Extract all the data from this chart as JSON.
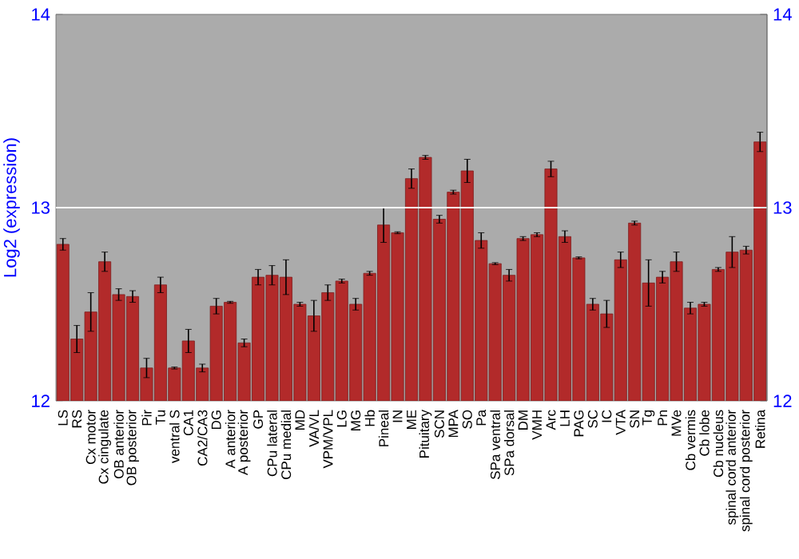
{
  "chart_data": {
    "type": "bar",
    "ylabel": "Log2 (expression)",
    "categories": [
      "LS",
      "RS",
      "Cx motor",
      "Cx cingulate",
      "OB anterior",
      "OB posterior",
      "Pir",
      "Tu",
      "ventral S",
      "CA1",
      "CA2/CA3",
      "DG",
      "A anterior",
      "A posterior",
      "GP",
      "CPu lateral",
      "CPu medial",
      "MD",
      "VA/VL",
      "VPM/VPL",
      "LG",
      "MG",
      "Hb",
      "Pineal",
      "IN",
      "ME",
      "Pituitary",
      "SCN",
      "MPA",
      "SO",
      "Pa",
      "SPa ventral",
      "SPa dorsal",
      "DM",
      "VMH",
      "Arc",
      "LH",
      "PAG",
      "SC",
      "IC",
      "VTA",
      "SN",
      "Tg",
      "Pn",
      "MVe",
      "Cb vermis",
      "Cb lobe",
      "Cb nucleus",
      "spinal cord anterior",
      "spinal cord posterior",
      "Retina"
    ],
    "values": [
      12.81,
      12.32,
      12.46,
      12.72,
      12.55,
      12.54,
      12.17,
      12.6,
      12.17,
      12.31,
      12.17,
      12.49,
      12.51,
      12.3,
      12.64,
      12.65,
      12.64,
      12.5,
      12.44,
      12.56,
      12.62,
      12.5,
      12.66,
      12.91,
      12.87,
      13.15,
      13.26,
      12.94,
      13.08,
      13.19,
      12.83,
      12.71,
      12.65,
      12.84,
      12.86,
      13.2,
      12.85,
      12.74,
      12.5,
      12.45,
      12.73,
      12.92,
      12.61,
      12.64,
      12.72,
      12.48,
      12.5,
      12.68,
      12.77,
      12.78,
      13.34
    ],
    "errors": [
      0.03,
      0.07,
      0.1,
      0.05,
      0.03,
      0.03,
      0.05,
      0.04,
      0.005,
      0.06,
      0.02,
      0.04,
      0.005,
      0.02,
      0.04,
      0.05,
      0.09,
      0.01,
      0.08,
      0.04,
      0.01,
      0.03,
      0.01,
      0.09,
      0.005,
      0.05,
      0.01,
      0.02,
      0.01,
      0.06,
      0.04,
      0.005,
      0.03,
      0.01,
      0.01,
      0.04,
      0.03,
      0.005,
      0.03,
      0.07,
      0.04,
      0.01,
      0.12,
      0.03,
      0.05,
      0.03,
      0.01,
      0.01,
      0.08,
      0.02,
      0.05
    ],
    "color": "#b22a2a",
    "ylim": [
      12,
      14
    ],
    "yticks": [
      12,
      13,
      14
    ],
    "y2lim": [
      12,
      14
    ],
    "y2ticks": [
      12,
      13,
      14
    ],
    "ref_lines": [
      {
        "axis": "y",
        "value": 13,
        "color": "#ffffff"
      }
    ]
  }
}
